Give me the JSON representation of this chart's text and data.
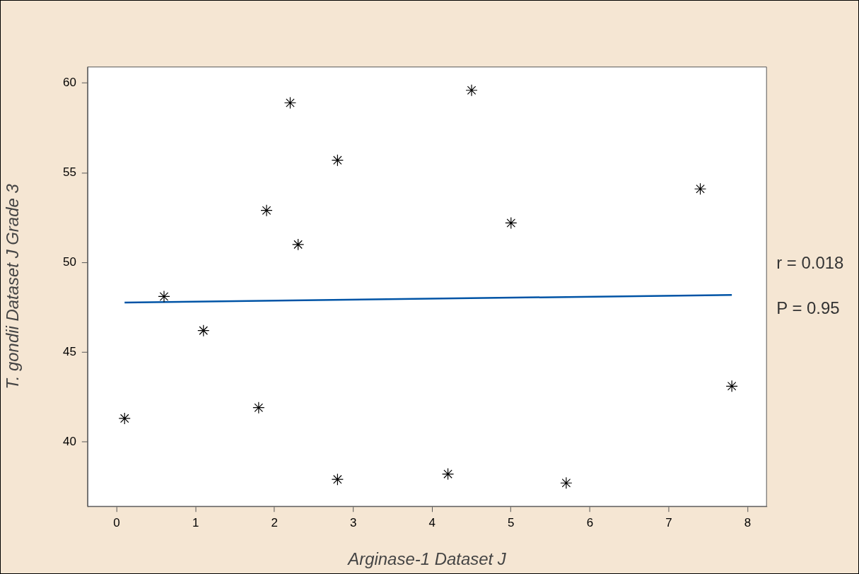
{
  "chart_data": {
    "type": "scatter",
    "xlabel": "Arginase-1 Dataset J",
    "ylabel": "T. gondii Dataset J Grade 3",
    "x": [
      0.1,
      0.6,
      1.1,
      1.8,
      1.9,
      2.2,
      2.3,
      2.8,
      2.8,
      4.2,
      4.5,
      5.0,
      5.7,
      7.4,
      7.8
    ],
    "series": [
      {
        "color": "#000000",
        "values": [
          41.3,
          48.1,
          46.2,
          41.9,
          52.9,
          58.9,
          51.0,
          55.7,
          37.9,
          38.2,
          59.6,
          52.2,
          37.7,
          54.1,
          43.1
        ]
      },
      {
        "type": "line",
        "color": "#0054a6",
        "x": [
          0.1,
          7.8
        ],
        "values": [
          47.76,
          48.19
        ],
        "marker": "none"
      }
    ],
    "marker": "cross",
    "xlim": [
      -0.37,
      8.24
    ],
    "xticks": [
      0,
      1,
      2,
      3,
      4,
      5,
      6,
      7,
      8
    ],
    "ylim": [
      36.4,
      60.9
    ],
    "yticks": [
      40,
      45,
      50,
      55,
      60
    ],
    "grid": false,
    "legend": false,
    "annotations": [
      "r = 0.018",
      "P = 0.95"
    ]
  }
}
